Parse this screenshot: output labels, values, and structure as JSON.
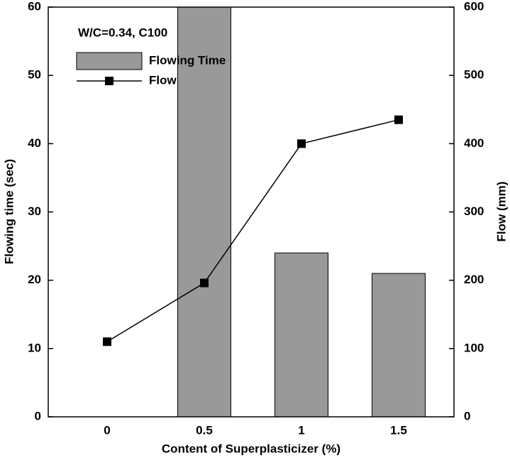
{
  "chart_data": {
    "type": "bar-line",
    "annotation": "W/C=0.34, C100",
    "x_label": "Content of Superplasticizer (%)",
    "y_label": "Flowing time (sec)",
    "y2_label": "Flow (mm)",
    "categories": [
      "0",
      "0.5",
      "1",
      "1.5"
    ],
    "series": [
      {
        "name": "Flowing Time",
        "type": "bar",
        "color": "#999999",
        "values": [
          null,
          60,
          24,
          21
        ]
      },
      {
        "name": "Flow",
        "type": "line",
        "axis": "y2",
        "color": "#000000",
        "values": [
          110,
          196,
          400,
          435
        ]
      }
    ],
    "ylim": [
      0,
      60
    ],
    "yticks": [
      0,
      10,
      20,
      30,
      40,
      50,
      60
    ],
    "y2lim": [
      0,
      600
    ],
    "y2ticks": [
      0,
      100,
      200,
      300,
      400,
      500,
      600
    ],
    "legend": "upper left"
  }
}
